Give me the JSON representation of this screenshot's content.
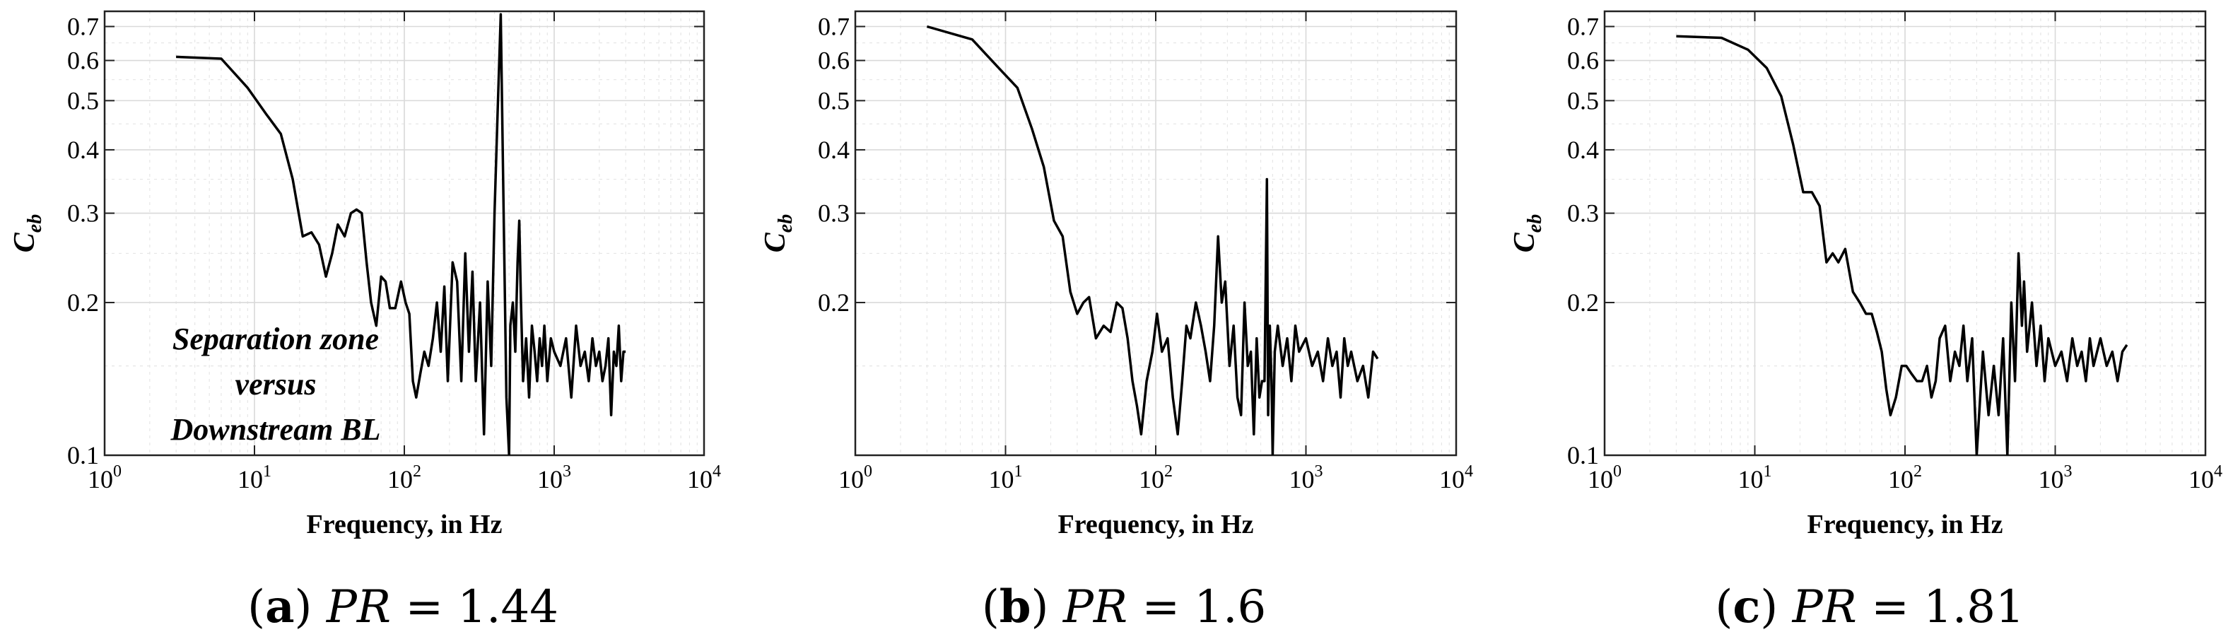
{
  "chart_data": [
    {
      "type": "line",
      "panel": "a",
      "caption": {
        "letter": "(a)",
        "label": "PR",
        "eq": "= 1.44"
      },
      "xlabel": "Frequency, in Hz",
      "ylabel": {
        "main": "C",
        "sub": "eb"
      },
      "xscale": "log",
      "yscale": "log",
      "xlim": [
        1,
        10000
      ],
      "ylim": [
        0.1,
        0.75
      ],
      "xticks": [
        1,
        10,
        100,
        1000,
        10000
      ],
      "xtick_labels": [
        {
          "base": "10",
          "exp": "0"
        },
        {
          "base": "10",
          "exp": "1"
        },
        {
          "base": "10",
          "exp": "2"
        },
        {
          "base": "10",
          "exp": "3"
        },
        {
          "base": "10",
          "exp": "4"
        }
      ],
      "yticks": [
        0.1,
        0.2,
        0.3,
        0.4,
        0.5,
        0.6,
        0.7
      ],
      "ytick_labels": [
        "0.1",
        "0.2",
        "0.3",
        "0.4",
        "0.5",
        "0.6",
        "0.7"
      ],
      "grid": true,
      "annotation": [
        "Separation zone",
        "versus",
        "Downstream BL"
      ],
      "series": [
        {
          "x": [
            3,
            6,
            9,
            12,
            15,
            18,
            21,
            24,
            27,
            30,
            33,
            36,
            40,
            44,
            48,
            52,
            56,
            60,
            65,
            70,
            75,
            80,
            87,
            95,
            102,
            108,
            114,
            120,
            128,
            136,
            145,
            155,
            165,
            175,
            185,
            195,
            210,
            225,
            240,
            255,
            270,
            285,
            300,
            320,
            340,
            360,
            380,
            400,
            420,
            440,
            460,
            480,
            500,
            510,
            530,
            550,
            570,
            585,
            600,
            620,
            650,
            680,
            710,
            740,
            770,
            800,
            830,
            860,
            900,
            950,
            1000,
            1100,
            1200,
            1300,
            1400,
            1500,
            1600,
            1700,
            1800,
            1900,
            2000,
            2100,
            2200,
            2300,
            2400,
            2500,
            2600,
            2700,
            2800,
            2900,
            3000
          ],
          "y": [
            0.61,
            0.605,
            0.53,
            0.47,
            0.43,
            0.35,
            0.27,
            0.275,
            0.26,
            0.225,
            0.25,
            0.285,
            0.27,
            0.3,
            0.305,
            0.3,
            0.24,
            0.2,
            0.18,
            0.225,
            0.22,
            0.195,
            0.195,
            0.22,
            0.2,
            0.19,
            0.14,
            0.13,
            0.145,
            0.16,
            0.15,
            0.17,
            0.2,
            0.16,
            0.215,
            0.14,
            0.24,
            0.22,
            0.14,
            0.25,
            0.16,
            0.23,
            0.14,
            0.2,
            0.11,
            0.22,
            0.15,
            0.3,
            0.48,
            0.74,
            0.3,
            0.13,
            0.1,
            0.18,
            0.2,
            0.16,
            0.24,
            0.29,
            0.2,
            0.14,
            0.17,
            0.13,
            0.18,
            0.16,
            0.14,
            0.17,
            0.15,
            0.18,
            0.14,
            0.17,
            0.16,
            0.15,
            0.17,
            0.13,
            0.18,
            0.15,
            0.16,
            0.14,
            0.17,
            0.15,
            0.16,
            0.14,
            0.15,
            0.17,
            0.12,
            0.16,
            0.15,
            0.18,
            0.14,
            0.16,
            0.16
          ]
        }
      ]
    },
    {
      "type": "line",
      "panel": "b",
      "caption": {
        "letter": "(b)",
        "label": "PR",
        "eq": "= 1.6"
      },
      "xlabel": "Frequency, in Hz",
      "ylabel": {
        "main": "C",
        "sub": "eb"
      },
      "xscale": "log",
      "yscale": "log",
      "xlim": [
        1,
        10000
      ],
      "ylim": [
        0.1,
        0.75
      ],
      "xticks": [
        1,
        10,
        100,
        1000,
        10000
      ],
      "xtick_labels": [
        {
          "base": "10",
          "exp": "0"
        },
        {
          "base": "10",
          "exp": "1"
        },
        {
          "base": "10",
          "exp": "2"
        },
        {
          "base": "10",
          "exp": "3"
        },
        {
          "base": "10",
          "exp": "4"
        }
      ],
      "yticks": [
        0.2,
        0.3,
        0.4,
        0.5,
        0.6,
        0.7
      ],
      "ytick_labels": [
        "0.2",
        "0.3",
        "0.4",
        "0.5",
        "0.6",
        "0.7"
      ],
      "grid": true,
      "series": [
        {
          "x": [
            3,
            6,
            9,
            12,
            15,
            18,
            21,
            24,
            27,
            30,
            33,
            36,
            40,
            45,
            50,
            55,
            60,
            65,
            70,
            75,
            80,
            87,
            95,
            102,
            110,
            120,
            130,
            140,
            150,
            160,
            170,
            185,
            200,
            215,
            230,
            245,
            260,
            275,
            290,
            310,
            330,
            350,
            370,
            390,
            410,
            430,
            450,
            470,
            490,
            510,
            530,
            550,
            560,
            575,
            590,
            600,
            620,
            650,
            700,
            750,
            800,
            850,
            900,
            1000,
            1100,
            1200,
            1300,
            1400,
            1500,
            1600,
            1700,
            1800,
            1900,
            2000,
            2200,
            2400,
            2600,
            2800,
            3000
          ],
          "y": [
            0.7,
            0.66,
            0.58,
            0.53,
            0.44,
            0.37,
            0.29,
            0.27,
            0.21,
            0.19,
            0.2,
            0.205,
            0.17,
            0.18,
            0.175,
            0.2,
            0.195,
            0.17,
            0.14,
            0.125,
            0.11,
            0.14,
            0.16,
            0.19,
            0.16,
            0.17,
            0.13,
            0.11,
            0.14,
            0.18,
            0.17,
            0.2,
            0.18,
            0.16,
            0.14,
            0.18,
            0.27,
            0.2,
            0.22,
            0.15,
            0.18,
            0.13,
            0.12,
            0.2,
            0.15,
            0.16,
            0.11,
            0.17,
            0.13,
            0.14,
            0.14,
            0.35,
            0.12,
            0.18,
            0.14,
            0.1,
            0.16,
            0.18,
            0.15,
            0.17,
            0.14,
            0.18,
            0.16,
            0.17,
            0.15,
            0.16,
            0.14,
            0.17,
            0.15,
            0.16,
            0.13,
            0.17,
            0.15,
            0.16,
            0.14,
            0.15,
            0.13,
            0.16,
            0.155
          ]
        }
      ]
    },
    {
      "type": "line",
      "panel": "c",
      "caption": {
        "letter": "(c)",
        "label": "PR",
        "eq": "= 1.81"
      },
      "xlabel": "Frequency, in Hz",
      "ylabel": {
        "main": "C",
        "sub": "eb"
      },
      "xscale": "log",
      "yscale": "log",
      "xlim": [
        1,
        10000
      ],
      "ylim": [
        0.1,
        0.75
      ],
      "xticks": [
        1,
        10,
        100,
        1000,
        10000
      ],
      "xtick_labels": [
        {
          "base": "10",
          "exp": "0"
        },
        {
          "base": "10",
          "exp": "1"
        },
        {
          "base": "10",
          "exp": "2"
        },
        {
          "base": "10",
          "exp": "3"
        },
        {
          "base": "10",
          "exp": "4"
        }
      ],
      "yticks": [
        0.1,
        0.2,
        0.3,
        0.4,
        0.5,
        0.6,
        0.7
      ],
      "ytick_labels": [
        "0.1",
        "0.2",
        "0.3",
        "0.4",
        "0.5",
        "0.6",
        "0.7"
      ],
      "grid": true,
      "series": [
        {
          "x": [
            3,
            6,
            9,
            12,
            15,
            18,
            21,
            24,
            27,
            30,
            33,
            36,
            40,
            45,
            50,
            55,
            60,
            65,
            70,
            75,
            80,
            87,
            95,
            102,
            110,
            120,
            130,
            140,
            150,
            160,
            170,
            185,
            200,
            215,
            230,
            245,
            260,
            280,
            300,
            330,
            360,
            390,
            420,
            450,
            480,
            510,
            540,
            570,
            600,
            620,
            650,
            700,
            750,
            800,
            850,
            900,
            1000,
            1100,
            1200,
            1300,
            1400,
            1500,
            1600,
            1700,
            1800,
            1900,
            2000,
            2200,
            2400,
            2600,
            2800,
            3000
          ],
          "y": [
            0.67,
            0.665,
            0.63,
            0.58,
            0.51,
            0.41,
            0.33,
            0.33,
            0.31,
            0.24,
            0.25,
            0.24,
            0.255,
            0.21,
            0.2,
            0.19,
            0.19,
            0.175,
            0.16,
            0.135,
            0.12,
            0.13,
            0.15,
            0.15,
            0.145,
            0.14,
            0.14,
            0.15,
            0.13,
            0.14,
            0.17,
            0.18,
            0.14,
            0.16,
            0.15,
            0.18,
            0.14,
            0.17,
            0.1,
            0.16,
            0.12,
            0.15,
            0.12,
            0.17,
            0.1,
            0.2,
            0.14,
            0.25,
            0.18,
            0.22,
            0.16,
            0.2,
            0.15,
            0.18,
            0.14,
            0.17,
            0.15,
            0.16,
            0.14,
            0.17,
            0.15,
            0.16,
            0.14,
            0.17,
            0.15,
            0.16,
            0.17,
            0.15,
            0.16,
            0.14,
            0.16,
            0.165
          ]
        }
      ]
    }
  ]
}
